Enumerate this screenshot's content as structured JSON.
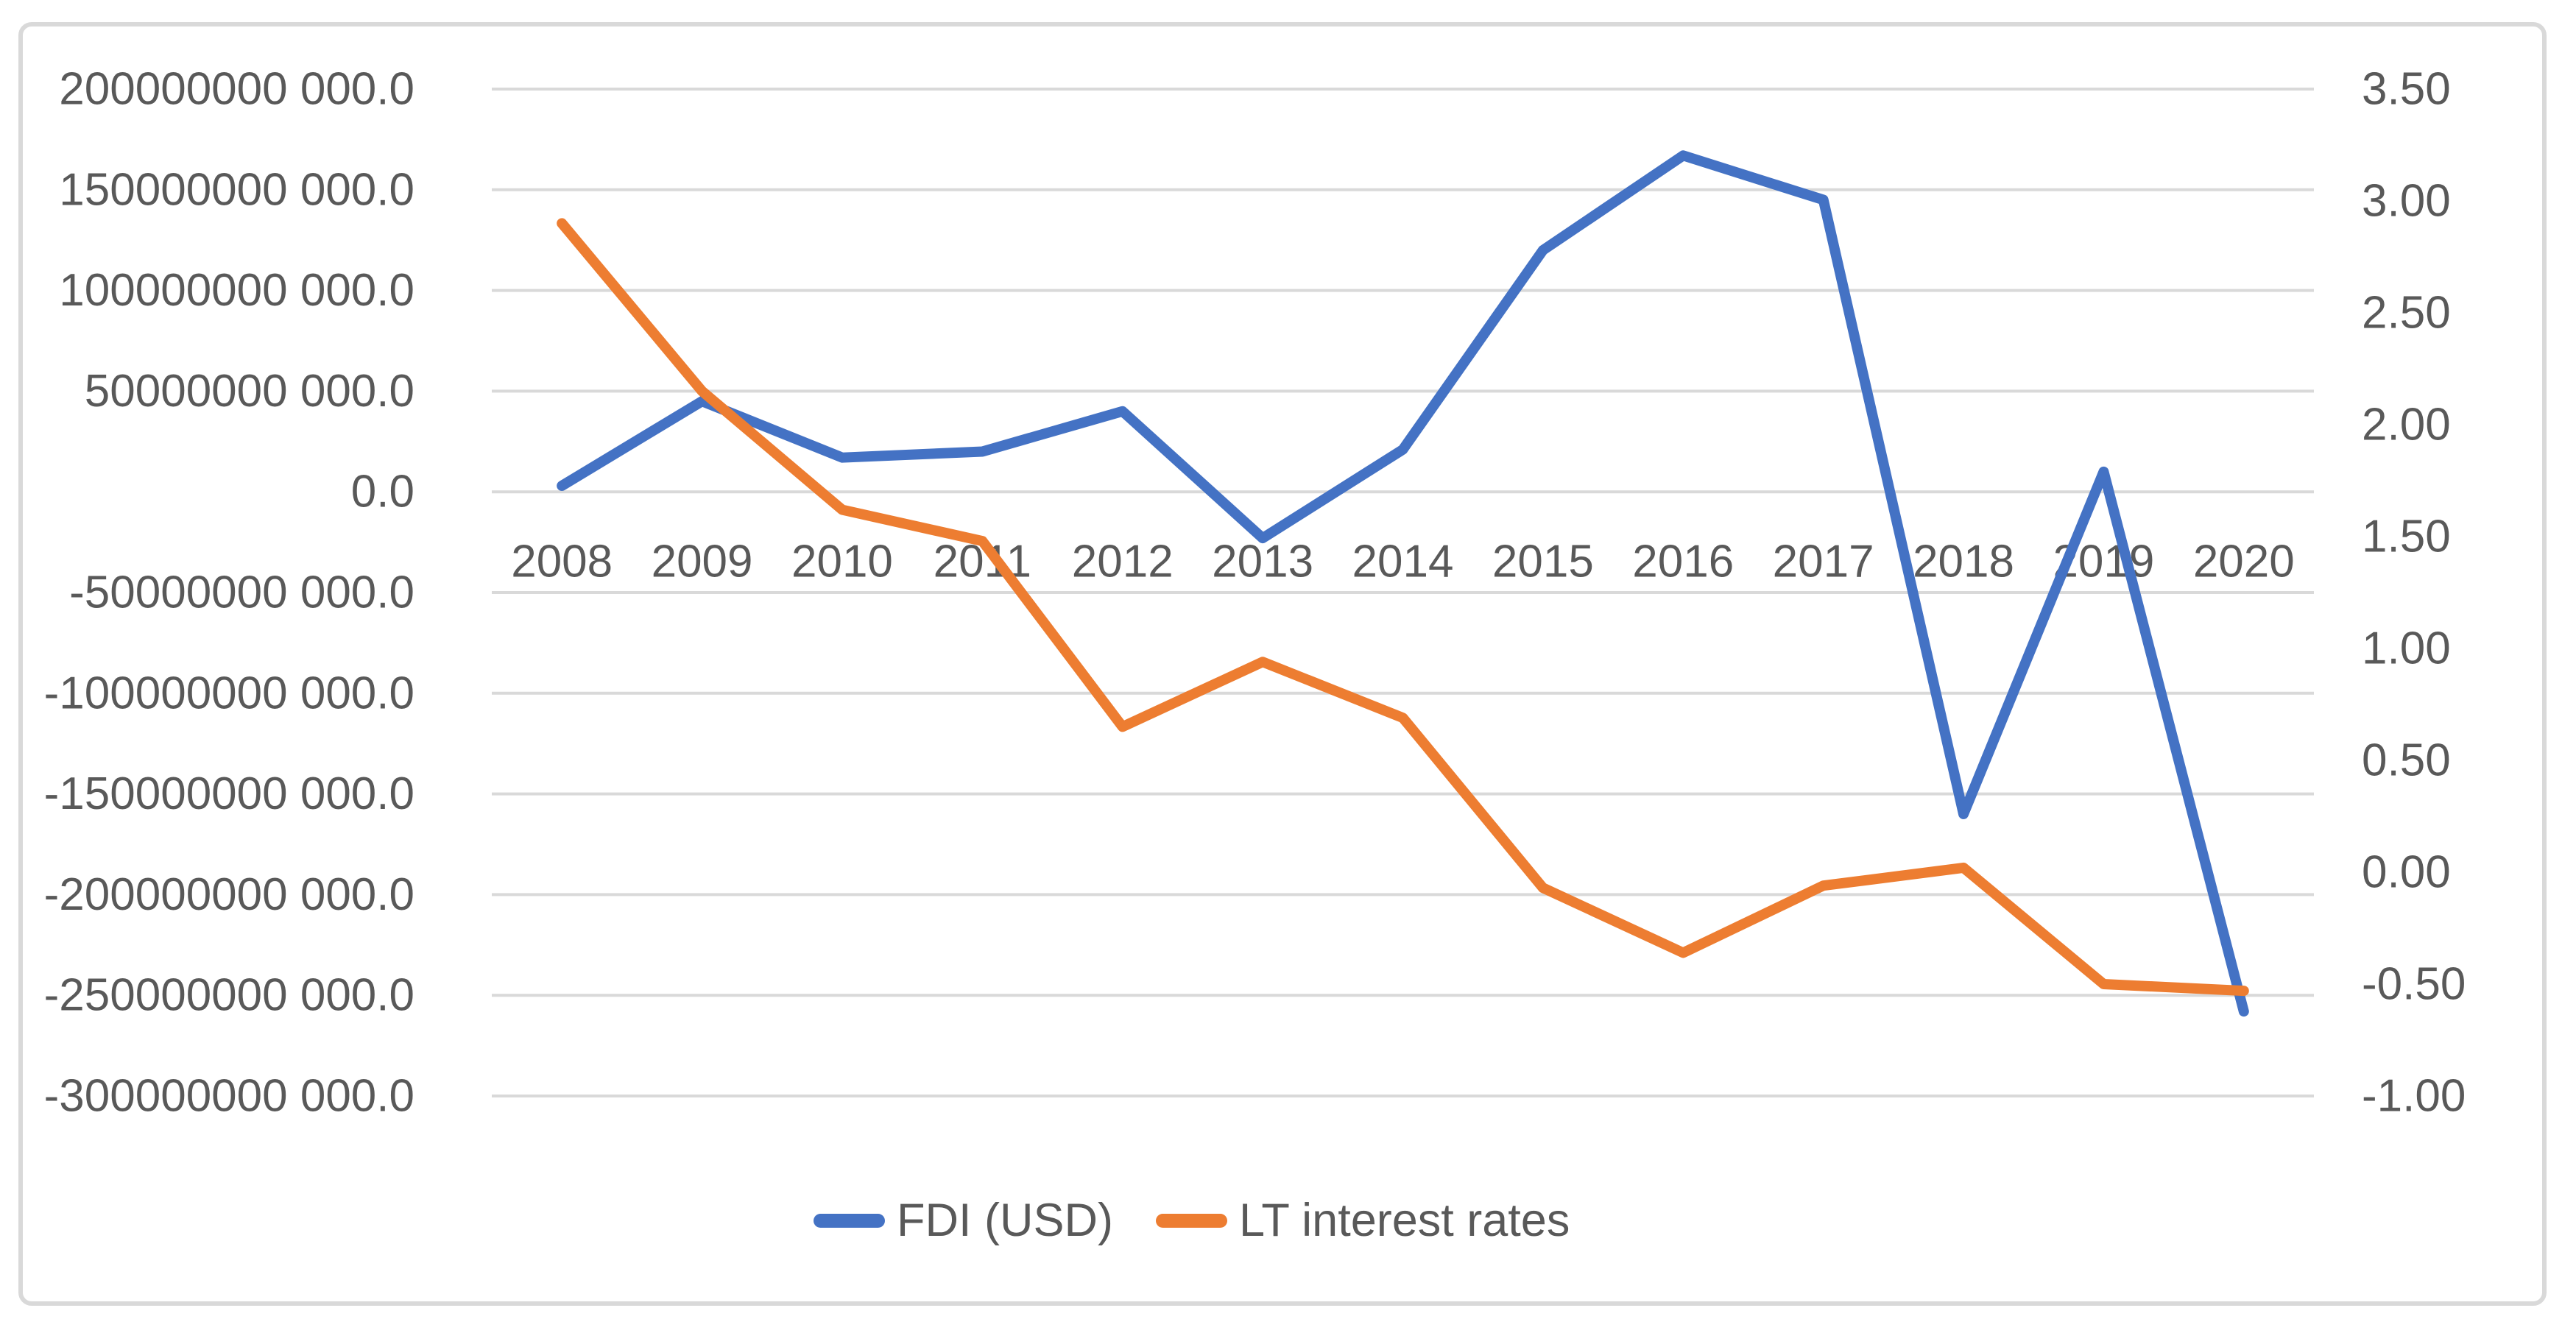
{
  "chart_data": {
    "type": "line",
    "title": "",
    "categories": [
      "2008",
      "2009",
      "2010",
      "2011",
      "2012",
      "2013",
      "2014",
      "2015",
      "2016",
      "2017",
      "2018",
      "2019",
      "2020"
    ],
    "series": [
      {
        "name": "FDI (USD)",
        "axis": "left",
        "color": "#4472C4",
        "values": [
          3000000000,
          45000000000,
          17000000000,
          20000000000,
          40000000000,
          -23000000000,
          21000000000,
          120000000000,
          167000000000,
          145000000000,
          -160000000000,
          10000000000,
          -258000000000
        ]
      },
      {
        "name": "LT interest rates",
        "axis": "right",
        "color": "#ED7D31",
        "values": [
          2.9,
          2.15,
          1.62,
          1.48,
          0.65,
          0.94,
          0.69,
          -0.07,
          -0.36,
          -0.06,
          0.02,
          -0.5,
          -0.53
        ]
      }
    ],
    "left_axis": {
      "min": -300000000000,
      "max": 200000000000,
      "step": 50000000000,
      "tick_labels": [
        "200000000 000.0",
        "150000000 000.0",
        "100000000 000.0",
        "50000000 000.0",
        "0.0",
        "-50000000 000.0",
        "-100000000 000.0",
        "-150000000 000.0",
        "-200000000 000.0",
        "-250000000 000.0",
        "-300000000 000.0"
      ]
    },
    "right_axis": {
      "min": -1.0,
      "max": 3.5,
      "step": 0.5,
      "tick_labels": [
        "3.50",
        "3.00",
        "2.50",
        "2.00",
        "1.50",
        "1.00",
        "0.50",
        "0.00",
        "-0.50",
        "-1.00"
      ]
    },
    "x_axis": {
      "tick_labels": [
        "2008",
        "2009",
        "2010",
        "2011",
        "2012",
        "2013",
        "2014",
        "2015",
        "2016",
        "2017",
        "2018",
        "2019",
        "2020"
      ]
    },
    "grid": true,
    "legend_position": "bottom"
  },
  "colors": {
    "background": "#FFFFFF",
    "border": "#D9D9D9",
    "gridline": "#D9D9D9",
    "axis_text": "#595959",
    "series_fdi": "#4472C4",
    "series_lt_rates": "#ED7D31"
  }
}
